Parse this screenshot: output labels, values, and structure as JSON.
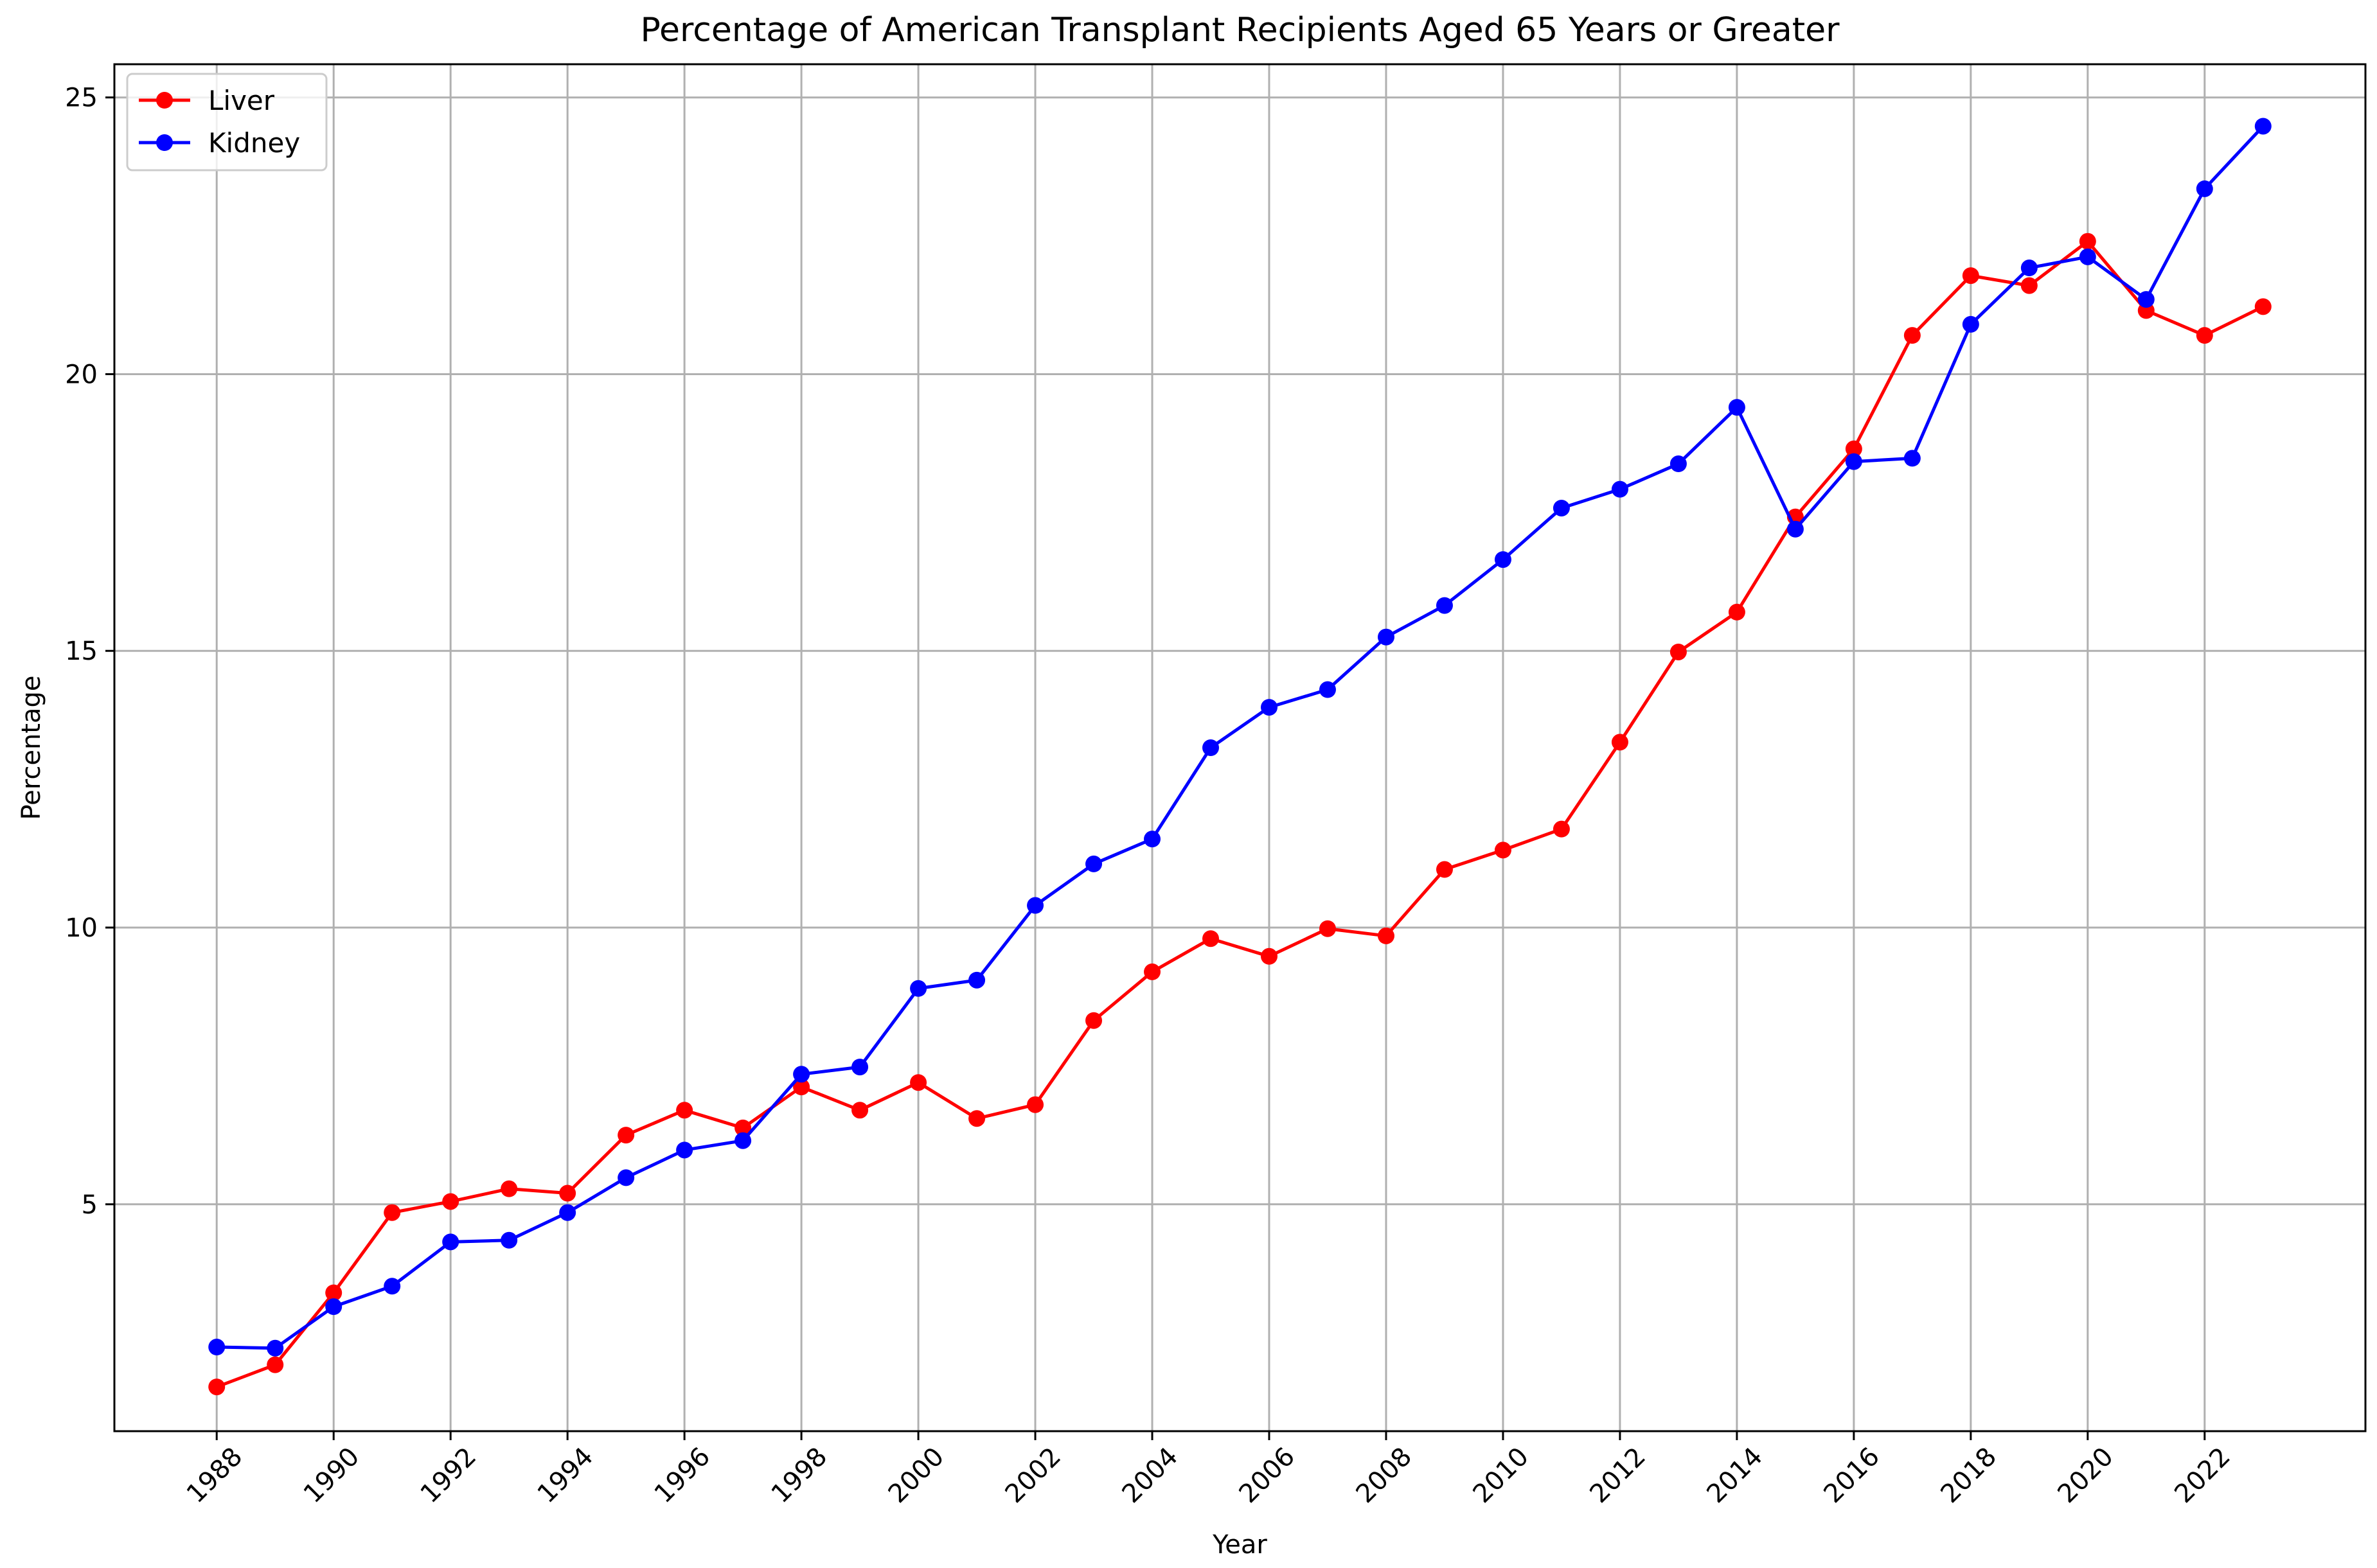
{
  "chart_data": {
    "type": "line",
    "title": "Percentage of American Transplant Recipients Aged 65 Years or Greater",
    "xlabel": "Year",
    "ylabel": "Percentage",
    "xlim": [
      1986.25,
      2024.75
    ],
    "ylim": [
      0.9,
      25.6
    ],
    "x_ticks": [
      1988,
      1990,
      1992,
      1994,
      1996,
      1998,
      2000,
      2002,
      2004,
      2006,
      2008,
      2010,
      2012,
      2014,
      2016,
      2018,
      2020,
      2022
    ],
    "y_ticks": [
      5,
      10,
      15,
      20,
      25
    ],
    "grid": true,
    "legend_position": "top-left",
    "x": [
      1988,
      1989,
      1990,
      1991,
      1992,
      1993,
      1994,
      1995,
      1996,
      1997,
      1998,
      1999,
      2000,
      2001,
      2002,
      2003,
      2004,
      2005,
      2006,
      2007,
      2008,
      2009,
      2010,
      2011,
      2012,
      2013,
      2014,
      2015,
      2016,
      2017,
      2018,
      2019,
      2020,
      2021,
      2022,
      2023
    ],
    "series": [
      {
        "name": "Liver",
        "color": "#ff0000",
        "values": [
          1.7,
          2.1,
          3.4,
          4.85,
          5.05,
          5.28,
          5.2,
          6.25,
          6.7,
          6.38,
          7.12,
          6.7,
          7.2,
          6.55,
          6.8,
          8.32,
          9.2,
          9.8,
          9.48,
          9.98,
          9.85,
          11.05,
          11.4,
          11.78,
          13.35,
          14.98,
          15.7,
          17.42,
          18.65,
          20.7,
          21.78,
          21.6,
          22.4,
          21.15,
          20.7,
          21.22
        ]
      },
      {
        "name": "Kidney",
        "color": "#0000ff",
        "values": [
          2.42,
          2.4,
          3.15,
          3.52,
          4.32,
          4.35,
          4.85,
          5.48,
          5.98,
          6.15,
          7.35,
          7.48,
          8.9,
          9.05,
          10.4,
          11.15,
          11.6,
          13.25,
          13.98,
          14.3,
          15.25,
          15.82,
          16.65,
          17.58,
          17.92,
          18.38,
          19.4,
          17.2,
          18.42,
          18.48,
          20.9,
          21.92,
          22.12,
          21.35,
          23.35,
          24.48
        ]
      }
    ]
  }
}
